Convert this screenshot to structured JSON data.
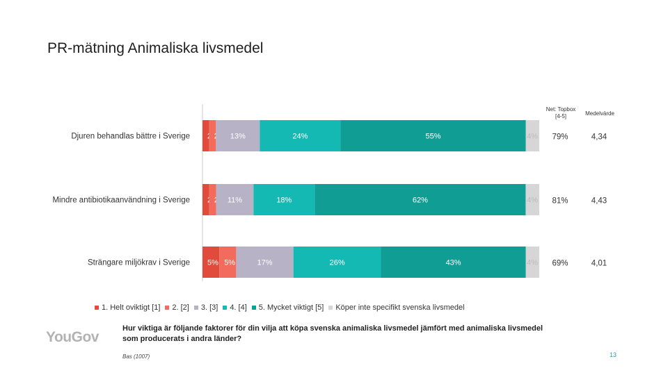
{
  "title": "PR-mätning Animaliska livsmedel",
  "chart_data": {
    "type": "bar",
    "orientation": "horizontal",
    "stacked": true,
    "categories": [
      "Djuren behandlas bättre i Sverige",
      "Mindre antibiotikaanvändning i Sverige",
      "Strängare miljökrav i Sverige"
    ],
    "series": [
      {
        "name": "1. Helt oviktigt [1]",
        "color": "#e04b3c",
        "values": [
          2,
          2,
          5
        ],
        "labels": [
          "2%",
          "2%",
          "5%"
        ]
      },
      {
        "name": "2. [2]",
        "color": "#f26b5c",
        "values": [
          2,
          2,
          5
        ],
        "labels": [
          "2%",
          "2%",
          "5%"
        ]
      },
      {
        "name": "3. [3]",
        "color": "#b7b2c6",
        "values": [
          13,
          11,
          17
        ],
        "labels": [
          "13%",
          "11%",
          "17%"
        ]
      },
      {
        "name": "4. [4]",
        "color": "#15b9b3",
        "values": [
          24,
          18,
          26
        ],
        "labels": [
          "24%",
          "18%",
          "26%"
        ]
      },
      {
        "name": "5. Mycket viktigt [5]",
        "color": "#0f9d94",
        "values": [
          55,
          62,
          43
        ],
        "labels": [
          "55%",
          "62%",
          "43%"
        ]
      },
      {
        "name": "Köper inte specifikt svenska livsmedel",
        "color": "#d6d6d6",
        "values": [
          4,
          4,
          4
        ],
        "labels": [
          "4%",
          "4%",
          "4%"
        ]
      }
    ],
    "side_columns": {
      "net_header": "Net: Topbox [4-5]",
      "net_values": [
        "79%",
        "81%",
        "69%"
      ],
      "mean_header": "Medelvärde",
      "mean_values": [
        "4,34",
        "4,43",
        "4,01"
      ]
    }
  },
  "question": "Hur viktiga är följande faktorer för din vilja att köpa svenska animaliska livsmedel jämfört med animaliska livsmedel som producerats i andra länder?",
  "base": "Bas (1007)",
  "logo": "YouGov",
  "page_number": "13"
}
